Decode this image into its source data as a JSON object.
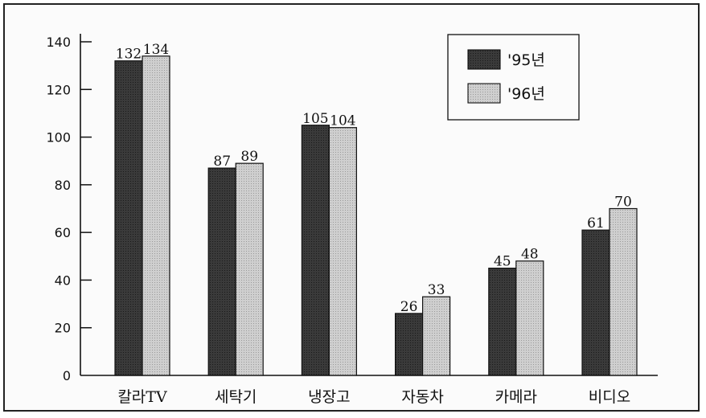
{
  "chart_data": {
    "type": "bar",
    "categories": [
      "칼라TV",
      "세탁기",
      "냉장고",
      "자동차",
      "카메라",
      "비디오"
    ],
    "series": [
      {
        "name": "'95년",
        "values": [
          132,
          87,
          105,
          26,
          45,
          61
        ],
        "color": "#3c3c3c"
      },
      {
        "name": "'96년",
        "values": [
          134,
          89,
          104,
          33,
          48,
          70
        ],
        "color": "#c4c4c4"
      }
    ],
    "title": "",
    "xlabel": "",
    "ylabel": "",
    "ylim": [
      0,
      140
    ],
    "yticks": [
      0,
      20,
      40,
      60,
      80,
      100,
      120,
      140
    ],
    "grid": false,
    "legend": "top-right"
  }
}
